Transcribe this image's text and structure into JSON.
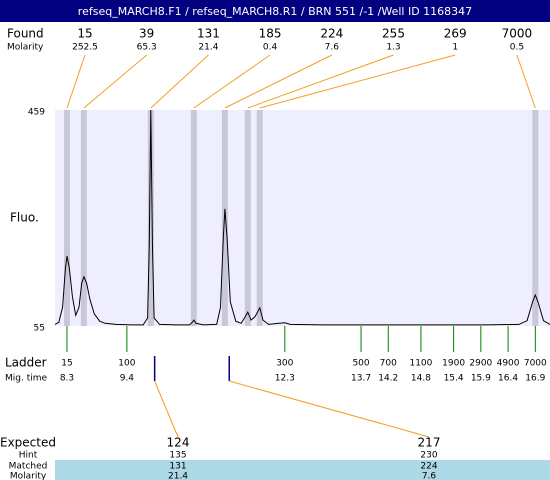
{
  "title": "refseq_MARCH8.F1 / refseq_MARCH8.R1 / BRN 551 /-1 /Well ID 1168347",
  "chart_data": {
    "type": "line",
    "y_label": "Fluo.",
    "ylim": [
      55,
      459
    ],
    "yticks": [
      55,
      459
    ],
    "xlim": [
      8.08,
      17.17
    ],
    "color": "#000000",
    "x": [
      8.08,
      8.15,
      8.22,
      8.27,
      8.3,
      8.34,
      8.4,
      8.46,
      8.52,
      8.57,
      8.61,
      8.66,
      8.72,
      8.8,
      8.9,
      9.0,
      9.2,
      9.5,
      9.7,
      9.78,
      9.81,
      9.84,
      9.87,
      9.9,
      10.0,
      10.3,
      10.55,
      10.6,
      10.63,
      10.67,
      10.8,
      11.05,
      11.12,
      11.17,
      11.2,
      11.24,
      11.3,
      11.4,
      11.5,
      11.56,
      11.62,
      11.68,
      11.75,
      11.84,
      11.9,
      12.0,
      12.2,
      12.3,
      12.4,
      13.0,
      14.0,
      15.0,
      16.0,
      16.6,
      16.75,
      16.85,
      16.9,
      16.95,
      17.05,
      17.17
    ],
    "values": [
      58,
      62,
      90,
      160,
      186,
      165,
      110,
      75,
      90,
      135,
      147,
      135,
      105,
      78,
      64,
      60,
      58,
      57,
      57,
      70,
      200,
      459,
      200,
      70,
      58,
      57,
      57,
      62,
      66,
      60,
      57,
      58,
      90,
      220,
      274,
      220,
      100,
      64,
      60,
      70,
      81,
      66,
      72,
      89,
      66,
      58,
      60,
      61,
      58,
      57,
      57,
      57,
      57,
      58,
      65,
      100,
      113,
      100,
      65,
      58
    ]
  },
  "found": {
    "label": "Found",
    "molarity_label": "Molarity",
    "peaks": [
      {
        "size": 15,
        "molarity": 252.5,
        "time": 8.3
      },
      {
        "size": 39,
        "molarity": 65.3,
        "time": 8.61
      },
      {
        "size": 131,
        "molarity": 21.4,
        "time": 9.84
      },
      {
        "size": 185,
        "molarity": 0.4,
        "time": 10.63
      },
      {
        "size": 224,
        "molarity": 7.6,
        "time": 11.2
      },
      {
        "size": 255,
        "molarity": 1.3,
        "time": 11.62
      },
      {
        "size": 269,
        "molarity": 1,
        "time": 11.84
      },
      {
        "size": 7000,
        "molarity": 0.5,
        "time": 16.9
      }
    ]
  },
  "ladder": {
    "label": "Ladder",
    "time_label": "Mig. time",
    "sizes": [
      15,
      100,
      300,
      500,
      700,
      1100,
      1900,
      2900,
      4900,
      7000
    ],
    "times": [
      8.3,
      9.4,
      12.3,
      13.7,
      14.2,
      14.8,
      15.4,
      15.9,
      16.4,
      16.9
    ]
  },
  "expected": {
    "label": "Expected",
    "hint_label": "Hint",
    "matched_label": "Matched",
    "molarity_label": "Molarity",
    "columns": [
      {
        "expected": 124,
        "hint": 135,
        "matched": 131,
        "molarity": 21.4,
        "time": 9.91
      },
      {
        "expected": 217,
        "hint": 230,
        "matched": 224,
        "molarity": 7.6,
        "time": 11.28
      }
    ]
  }
}
